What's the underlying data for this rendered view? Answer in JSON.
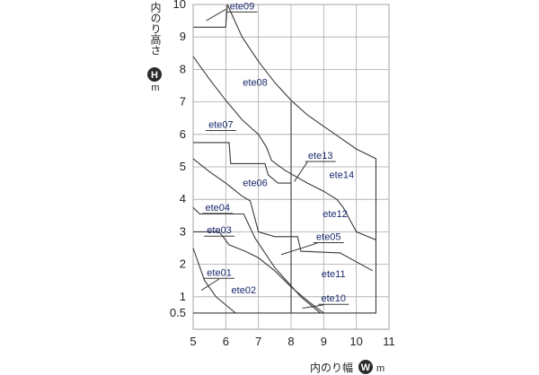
{
  "chart_data": {
    "type": "line",
    "xlim": [
      5,
      11
    ],
    "ylim": [
      0,
      10
    ],
    "x_ticks": [
      "5",
      "6",
      "7",
      "8",
      "9",
      "10",
      "11"
    ],
    "y_ticks": [
      "0.5",
      "1",
      "2",
      "3",
      "4",
      "5",
      "6",
      "7",
      "8",
      "9",
      "10"
    ],
    "grid": true,
    "xlabel": "内のり幅",
    "xlabel_badge": "W",
    "xlabel_unit": "m",
    "ylabel": "内のり高さ",
    "ylabel_badge": "H",
    "ylabel_unit": "m",
    "regions": [
      {
        "name": "ete01",
        "points": [
          [
            5.0,
            2.5
          ],
          [
            5.35,
            1.5
          ],
          [
            5.7,
            1.0
          ],
          [
            6.3,
            0.5
          ]
        ]
      },
      {
        "name": "ete03",
        "points": [
          [
            5.0,
            3.0
          ],
          [
            5.8,
            3.0
          ],
          [
            6.1,
            2.6
          ],
          [
            6.6,
            2.4
          ],
          [
            7.0,
            2.2
          ],
          [
            7.5,
            1.8
          ],
          [
            8.0,
            1.3
          ],
          [
            8.6,
            0.8
          ],
          [
            9.0,
            0.5
          ]
        ]
      },
      {
        "name": "ete04",
        "points": [
          [
            5.0,
            3.75
          ],
          [
            5.2,
            3.55
          ],
          [
            6.55,
            3.55
          ],
          [
            6.9,
            2.8
          ],
          [
            7.5,
            1.9
          ],
          [
            8.3,
            1.0
          ],
          [
            8.9,
            0.5
          ]
        ]
      },
      {
        "name": "ete06",
        "points": [
          [
            5.0,
            5.25
          ],
          [
            5.5,
            4.85
          ],
          [
            6.0,
            4.5
          ],
          [
            6.5,
            4.1
          ],
          [
            6.75,
            3.95
          ],
          [
            7.0,
            3.0
          ],
          [
            7.5,
            2.85
          ],
          [
            8.2,
            2.85
          ],
          [
            8.3,
            2.4
          ],
          [
            9.5,
            2.35
          ],
          [
            10.5,
            1.8
          ]
        ]
      },
      {
        "name": "ete07",
        "points": [
          [
            5.0,
            5.75
          ],
          [
            6.1,
            5.75
          ],
          [
            6.15,
            5.1
          ],
          [
            7.2,
            5.1
          ],
          [
            7.3,
            4.75
          ],
          [
            7.6,
            4.5
          ],
          [
            8.0,
            4.5
          ]
        ]
      },
      {
        "name": "ete08",
        "points": [
          [
            5.0,
            8.4
          ],
          [
            5.5,
            7.7
          ],
          [
            6.0,
            7.05
          ],
          [
            6.5,
            6.45
          ],
          [
            7.0,
            6.0
          ],
          [
            7.25,
            5.6
          ],
          [
            7.4,
            5.2
          ],
          [
            7.8,
            4.9
          ],
          [
            8.5,
            4.5
          ],
          [
            9.0,
            4.25
          ],
          [
            9.4,
            4.0
          ],
          [
            9.6,
            3.75
          ],
          [
            10.0,
            3.0
          ],
          [
            10.6,
            2.75
          ]
        ]
      },
      {
        "name": "ete09",
        "points": [
          [
            5.0,
            9.3
          ],
          [
            6.0,
            9.3
          ],
          [
            6.05,
            10.0
          ],
          [
            6.5,
            9.0
          ],
          [
            7.0,
            8.25
          ],
          [
            7.5,
            7.6
          ],
          [
            8.0,
            7.05
          ],
          [
            8.5,
            6.6
          ],
          [
            9.0,
            6.25
          ],
          [
            9.5,
            5.9
          ],
          [
            10.0,
            5.55
          ],
          [
            10.6,
            5.25
          ],
          [
            10.6,
            0.5
          ],
          [
            5.0,
            0.5
          ]
        ]
      },
      {
        "name": "ete10",
        "points": [
          [
            8.0,
            7.0
          ],
          [
            8.0,
            0.5
          ]
        ]
      }
    ],
    "region_labels": [
      {
        "text": "ete09",
        "x": 6.5,
        "y": 9.85,
        "underline": true
      },
      {
        "text": "ete08",
        "x": 6.9,
        "y": 7.5,
        "underline": false
      },
      {
        "text": "ete07",
        "x": 5.85,
        "y": 6.2,
        "underline": true
      },
      {
        "text": "ete13",
        "x": 8.9,
        "y": 5.25,
        "underline": true
      },
      {
        "text": "ete14",
        "x": 9.55,
        "y": 4.65,
        "underline": false
      },
      {
        "text": "ete06",
        "x": 6.9,
        "y": 4.4,
        "underline": false
      },
      {
        "text": "ete04",
        "x": 5.75,
        "y": 3.65,
        "underline": true
      },
      {
        "text": "ete12",
        "x": 9.35,
        "y": 3.45,
        "underline": false
      },
      {
        "text": "ete03",
        "x": 5.8,
        "y": 2.95,
        "underline": true
      },
      {
        "text": "ete05",
        "x": 9.15,
        "y": 2.75,
        "underline": true
      },
      {
        "text": "ete01",
        "x": 5.8,
        "y": 1.65,
        "underline": true
      },
      {
        "text": "ete11",
        "x": 9.3,
        "y": 1.6,
        "underline": false
      },
      {
        "text": "ete02",
        "x": 6.55,
        "y": 1.1,
        "underline": false
      },
      {
        "text": "ete10",
        "x": 9.3,
        "y": 0.85,
        "underline": true
      }
    ],
    "leaders": [
      {
        "label": "ete09",
        "from": [
          6.0,
          9.85
        ],
        "to": [
          5.4,
          9.5
        ]
      },
      {
        "label": "ete13",
        "from": [
          8.5,
          5.15
        ],
        "to": [
          8.1,
          4.55
        ]
      },
      {
        "label": "ete05",
        "from": [
          8.8,
          2.65
        ],
        "to": [
          7.7,
          2.3
        ]
      },
      {
        "label": "ete01",
        "from": [
          5.8,
          1.55
        ],
        "to": [
          5.25,
          1.2
        ]
      },
      {
        "label": "ete10",
        "from": [
          9.0,
          0.75
        ],
        "to": [
          8.35,
          0.65
        ]
      }
    ]
  }
}
